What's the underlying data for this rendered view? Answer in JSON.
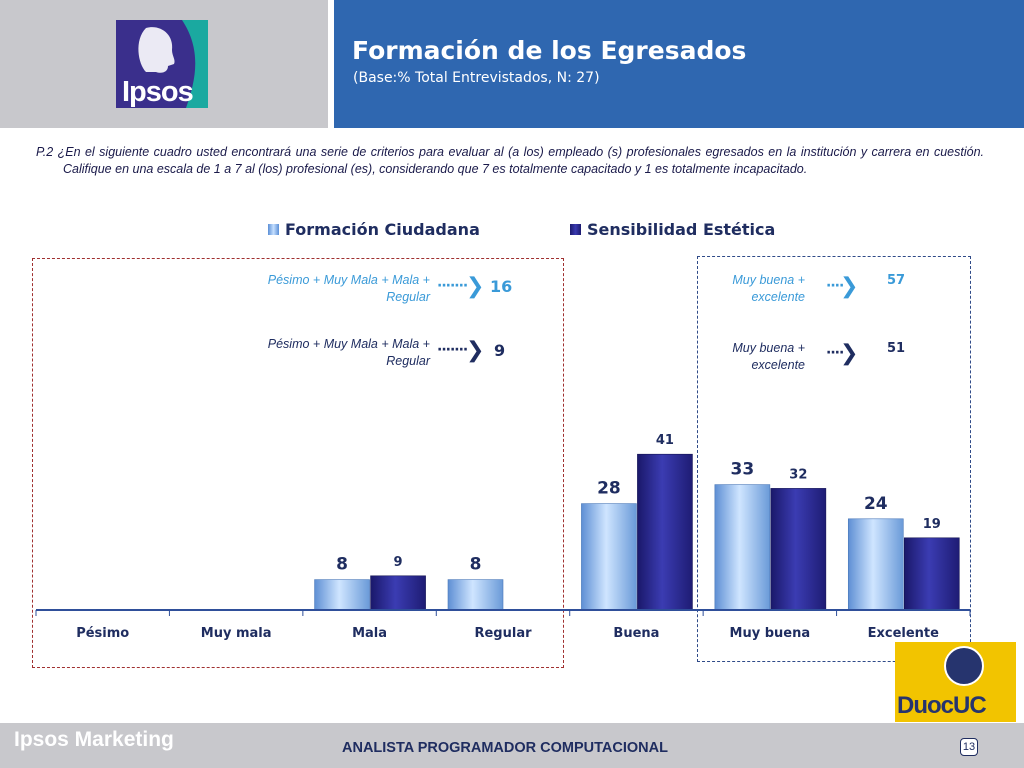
{
  "header": {
    "logo_text": "Ipsos",
    "title": "Formación de los Egresados",
    "subtitle": "(Base:% Total Entrevistados, N: 27)"
  },
  "question": "P.2 ¿En el siguiente cuadro usted encontrará una serie de criterios para evaluar al (a los) empleado (s) profesionales egresados en la institución y carrera en cuestión. Califique en una escala de 1 a 7 al (los) profesional (es), considerando que 7 es totalmente capacitado y 1 es totalmente incapacitado.",
  "summaries": {
    "negative": [
      {
        "label": "Pésimo + Muy Mala + Mala + Regular",
        "value": "16"
      },
      {
        "label": "Pésimo + Muy Mala + Mala + Regular",
        "value": "9"
      }
    ],
    "positive": [
      {
        "label": "Muy buena + excelente",
        "value": "57"
      },
      {
        "label": "Muy buena + excelente",
        "value": "51"
      }
    ]
  },
  "chart_data": {
    "type": "bar",
    "title": "",
    "xlabel": "",
    "ylabel": "",
    "ylim": [
      0,
      50
    ],
    "categories": [
      "Pésimo",
      "Muy mala",
      "Mala",
      "Regular",
      "Buena",
      "Muy buena",
      "Excelente"
    ],
    "series": [
      {
        "name": "Formación Ciudadana",
        "values": [
          null,
          null,
          8,
          8,
          28,
          33,
          24
        ],
        "color": "#8fbbee"
      },
      {
        "name": "Sensibilidad Estética",
        "values": [
          null,
          null,
          9,
          null,
          41,
          32,
          19
        ],
        "color": "#27278a"
      }
    ]
  },
  "footer": {
    "brand": "Ipsos Marketing",
    "center_text": "ANALISTA PROGRAMADOR COMPUTACIONAL",
    "page_number": "13",
    "partner_logo": "DuocUC"
  },
  "colors": {
    "header_blue": "#2f67b0",
    "light_accent": "#3a9ad8",
    "dark_navy": "#1f2d60",
    "red_box": "#a03030"
  }
}
